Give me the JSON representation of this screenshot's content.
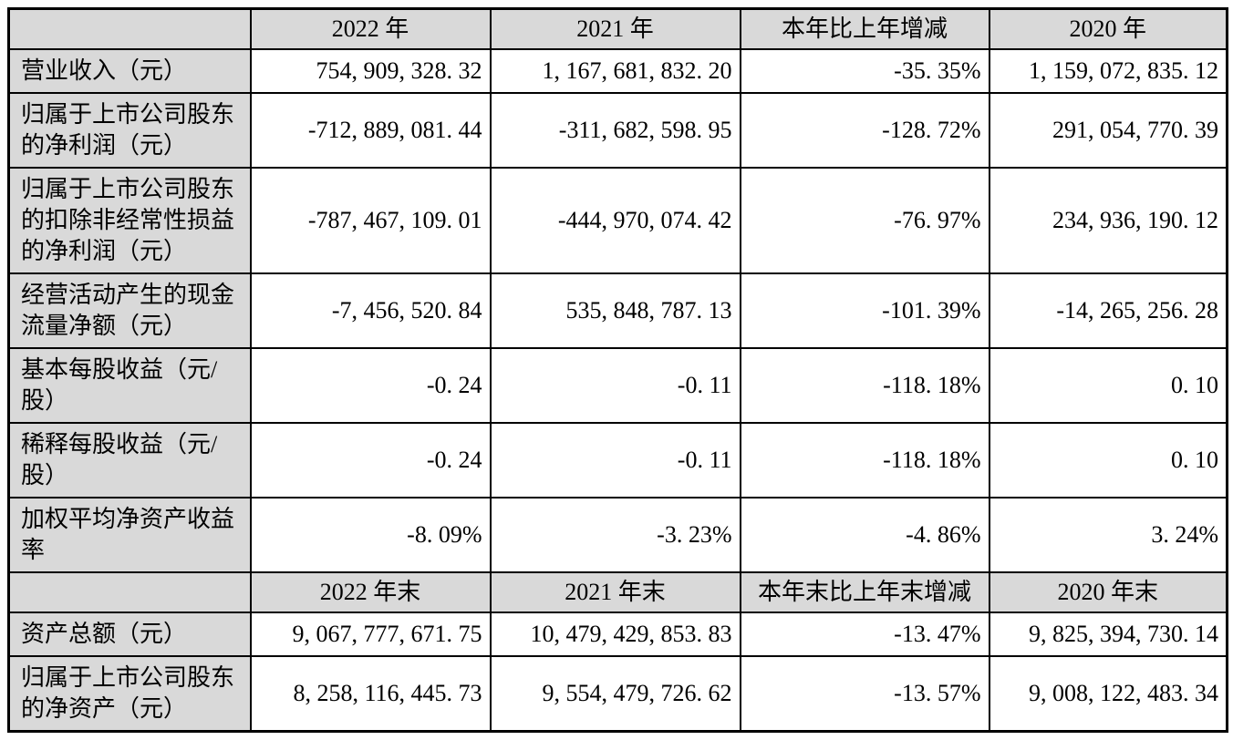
{
  "table": {
    "corner_label": "",
    "colors": {
      "header_bg": "#d9d9d9",
      "border": "#000000",
      "text": "#000000",
      "cell_bg": "#ffffff"
    },
    "section1": {
      "headers": [
        "2022 年",
        "2021 年",
        "本年比上年增减",
        "2020 年"
      ],
      "rows": [
        {
          "label": "营业收入（元）",
          "values": [
            "754, 909, 328. 32",
            "1, 167, 681, 832. 20",
            "-35. 35%",
            "1, 159, 072, 835. 12"
          ]
        },
        {
          "label": "归属于上市公司股东的净利润（元）",
          "values": [
            "-712, 889, 081. 44",
            "-311, 682, 598. 95",
            "-128. 72%",
            "291, 054, 770. 39"
          ]
        },
        {
          "label": "归属于上市公司股东的扣除非经常性损益的净利润（元）",
          "values": [
            "-787, 467, 109. 01",
            "-444, 970, 074. 42",
            "-76. 97%",
            "234, 936, 190. 12"
          ]
        },
        {
          "label": "经营活动产生的现金流量净额（元）",
          "values": [
            "-7, 456, 520. 84",
            "535, 848, 787. 13",
            "-101. 39%",
            "-14, 265, 256. 28"
          ]
        },
        {
          "label": "基本每股收益（元/股）",
          "values": [
            "-0. 24",
            "-0. 11",
            "-118. 18%",
            "0. 10"
          ]
        },
        {
          "label": "稀释每股收益（元/股）",
          "values": [
            "-0. 24",
            "-0. 11",
            "-118. 18%",
            "0. 10"
          ]
        },
        {
          "label": "加权平均净资产收益率",
          "values": [
            "-8. 09%",
            "-3. 23%",
            "-4. 86%",
            "3. 24%"
          ]
        }
      ]
    },
    "section2": {
      "headers": [
        "2022 年末",
        "2021 年末",
        "本年末比上年末增减",
        "2020 年末"
      ],
      "rows": [
        {
          "label": "资产总额（元）",
          "values": [
            "9, 067, 777, 671. 75",
            "10, 479, 429, 853. 83",
            "-13. 47%",
            "9, 825, 394, 730. 14"
          ]
        },
        {
          "label": "归属于上市公司股东的净资产（元）",
          "values": [
            "8, 258, 116, 445. 73",
            "9, 554, 479, 726. 62",
            "-13. 57%",
            "9, 008, 122, 483. 34"
          ]
        }
      ]
    }
  }
}
